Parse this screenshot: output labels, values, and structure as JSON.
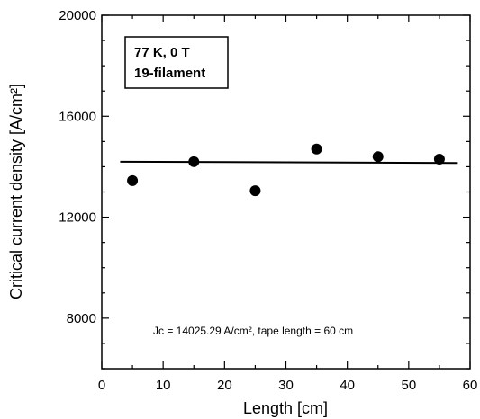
{
  "chart_data": {
    "type": "scatter",
    "xlabel": "Length [cm]",
    "ylabel": "Critical current density [A/cm²]",
    "xlim": [
      0,
      60
    ],
    "ylim": [
      6000,
      20000
    ],
    "xticks": [
      0,
      10,
      20,
      30,
      40,
      50,
      60
    ],
    "xtick_labels": [
      "0",
      "10",
      "20",
      "30",
      "40",
      "50",
      "60"
    ],
    "yticks": [
      8000,
      12000,
      16000,
      20000
    ],
    "ytick_labels": [
      "8000",
      "12000",
      "16000",
      "20000"
    ],
    "grid": false,
    "series": [
      {
        "marker": "filled-circle",
        "color": "#000000",
        "x": [
          5,
          15,
          25,
          35,
          45,
          55
        ],
        "y": [
          13450,
          14200,
          13050,
          14700,
          14400,
          14300
        ]
      }
    ],
    "fit_line": {
      "x": [
        3,
        58
      ],
      "y": [
        14200,
        14150
      ],
      "color": "#000000"
    },
    "annotations": {
      "box_line1": "77 K, 0 T",
      "box_line2": "19-filament",
      "note": "Jc = 14025.29 A/cm²,  tape length = 60 cm"
    }
  }
}
